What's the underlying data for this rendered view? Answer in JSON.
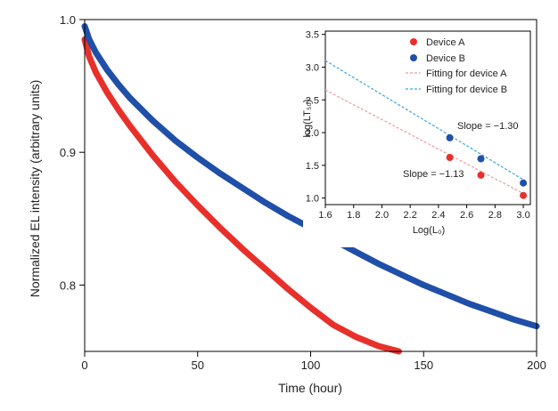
{
  "chart_data": [
    {
      "type": "line",
      "xlabel": "Time (hour)",
      "ylabel": "Normalized EL intensity (arbitrary units)",
      "xlim": [
        0,
        200
      ],
      "ylim": [
        0.75,
        1.0
      ],
      "xticks": [
        0,
        50,
        100,
        150,
        200
      ],
      "yticks": [
        0.8,
        0.9,
        1.0
      ],
      "xtick_labels": [
        "0",
        "50",
        "100",
        "150",
        "200"
      ],
      "ytick_labels": [
        "0.8",
        "0.9",
        "1.0"
      ],
      "grid": false,
      "series": [
        {
          "color": "#e8302a",
          "x": [
            0,
            2,
            5,
            10,
            15,
            20,
            30,
            40,
            50,
            60,
            70,
            80,
            90,
            100,
            110,
            120,
            130,
            139
          ],
          "y": [
            0.985,
            0.972,
            0.96,
            0.945,
            0.932,
            0.92,
            0.898,
            0.878,
            0.86,
            0.843,
            0.827,
            0.812,
            0.797,
            0.783,
            0.77,
            0.761,
            0.754,
            0.75
          ]
        },
        {
          "color": "#1f4fa8",
          "x": [
            0,
            2,
            5,
            10,
            15,
            20,
            30,
            40,
            50,
            60,
            70,
            80,
            90,
            100,
            110,
            120,
            130,
            140,
            150,
            160,
            170,
            180,
            190,
            200
          ],
          "y": [
            0.995,
            0.985,
            0.975,
            0.962,
            0.951,
            0.941,
            0.924,
            0.909,
            0.896,
            0.884,
            0.873,
            0.862,
            0.852,
            0.843,
            0.834,
            0.825,
            0.816,
            0.808,
            0.8,
            0.793,
            0.786,
            0.78,
            0.774,
            0.769
          ]
        }
      ]
    },
    {
      "type": "scatter",
      "xlabel": "Log(L₀)",
      "ylabel": "log(LT₅₀)",
      "xlim": [
        1.6,
        3.05
      ],
      "ylim": [
        0.9,
        3.55
      ],
      "xticks": [
        1.6,
        1.8,
        2.0,
        2.2,
        2.4,
        2.6,
        2.8,
        3.0
      ],
      "yticks": [
        1.0,
        1.5,
        2.0,
        2.5,
        3.0,
        3.5
      ],
      "xtick_labels": [
        "1.6",
        "1.8",
        "2.0",
        "2.2",
        "2.4",
        "2.6",
        "2.8",
        "3.0"
      ],
      "ytick_labels": [
        "1.0",
        "1.5",
        "2.0",
        "2.5",
        "3.0",
        "3.5"
      ],
      "legend_position": "top-right",
      "legend": [
        {
          "label": "Device A",
          "kind": "marker",
          "color": "#e8302a"
        },
        {
          "label": "Device B",
          "kind": "marker",
          "color": "#1f4fa8"
        },
        {
          "label": "Fitting for device A",
          "kind": "dashed",
          "color": "#f09aa0"
        },
        {
          "label": "Fitting for device B",
          "kind": "dashed",
          "color": "#3aa6d8"
        }
      ],
      "annotations": [
        {
          "text": "Slope = −1.30",
          "color": "#2a9bd0"
        },
        {
          "text": "Slope = −1.13",
          "color": "#e8302a"
        }
      ],
      "series": [
        {
          "name": "Device A",
          "color": "#e8302a",
          "x": [
            2.48,
            2.7,
            3.0
          ],
          "y": [
            1.62,
            1.35,
            1.04
          ]
        },
        {
          "name": "Device B",
          "color": "#1f4fa8",
          "x": [
            2.48,
            2.7,
            3.0
          ],
          "y": [
            1.92,
            1.6,
            1.23
          ]
        },
        {
          "name": "Fitting for device A",
          "color": "#f09aa0",
          "dashed": true,
          "x": [
            1.6,
            3.0
          ],
          "y": [
            2.65,
            1.07
          ]
        },
        {
          "name": "Fitting for device B",
          "color": "#3aa6d8",
          "dashed": true,
          "x": [
            1.6,
            3.0
          ],
          "y": [
            3.1,
            1.28
          ]
        }
      ]
    }
  ]
}
